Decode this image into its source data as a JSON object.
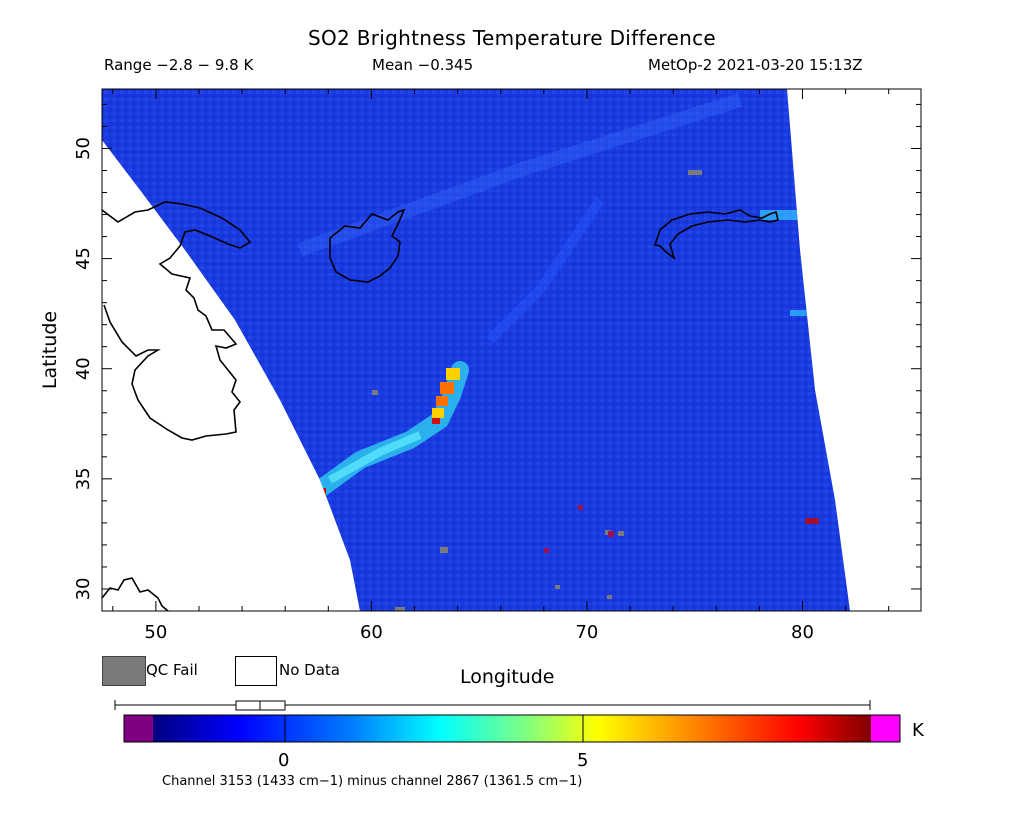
{
  "title": "SO2 Brightness Temperature Difference",
  "subtitle": {
    "range": "Range −2.8 − 9.8 K",
    "mean": "Mean −0.345",
    "satellite_time": "MetOp-2 2021-03-20 15:13Z"
  },
  "map": {
    "xlabel": "Longitude",
    "ylabel": "Latitude",
    "lon_range": [
      47.5,
      85.5
    ],
    "lat_range": [
      29,
      52.7
    ],
    "lon_ticks": [
      "50",
      "60",
      "70",
      "80"
    ],
    "lat_ticks": [
      "30",
      "35",
      "40",
      "45",
      "50"
    ],
    "background_color": "#1f3fe6",
    "plume_colors": [
      "#30d8f0",
      "#ffd000",
      "#ff7000",
      "#d01010"
    ]
  },
  "legend": {
    "qc_fail": "QC Fail",
    "no_data": "No Data",
    "qc_color": "#7a7a7a"
  },
  "colorbar": {
    "ticks": [
      "0",
      "5"
    ],
    "unit": "K",
    "range": [
      -2.8,
      9.8
    ],
    "under_color": "#800080",
    "over_color": "#ff00ff",
    "note": "Channel 3153 (1433 cm−1) minus channel 2867 (1361.5 cm−1)"
  }
}
